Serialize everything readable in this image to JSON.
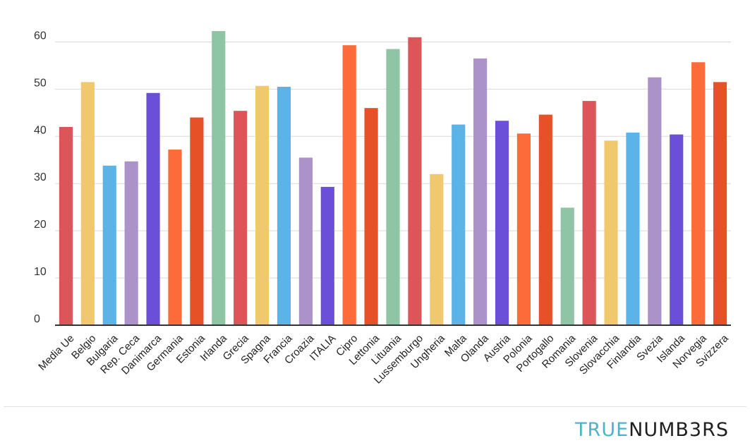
{
  "chart_data": {
    "type": "bar",
    "categories": [
      "Media Ue",
      "Belgio",
      "Bulgaria",
      "Rep. Ceca",
      "Danimarca",
      "Germania",
      "Estonia",
      "Irlanda",
      "Grecia",
      "Spagna",
      "Francia",
      "Croazia",
      "ITALIA",
      "Cipro",
      "Lettonia",
      "Lituania",
      "Lussemburgo",
      "Ungheria",
      "Malta",
      "Olanda",
      "Austria",
      "Polonia",
      "Portogallo",
      "Romania",
      "Slovenia",
      "Slovacchia",
      "Finlandia",
      "Svezia",
      "Islanda",
      "Norvegia",
      "Svizzera"
    ],
    "values": [
      42,
      51.5,
      33.8,
      34.7,
      49.2,
      37.2,
      44,
      62.3,
      45.4,
      50.7,
      50.5,
      35.5,
      29.3,
      59.3,
      46,
      58.5,
      61,
      32,
      42.5,
      56.5,
      43.3,
      40.6,
      44.6,
      24.9,
      47.5,
      39.1,
      40.8,
      52.5,
      40.4,
      55.7,
      51.5
    ],
    "colors": [
      "#dc5558",
      "#f0c96e",
      "#5bb3e6",
      "#ab92c9",
      "#6c4fd9",
      "#fc6b3a",
      "#e65127",
      "#8fc4a5",
      "#dc5558",
      "#f0c96e",
      "#5bb3e6",
      "#ab92c9",
      "#6c4fd9",
      "#fc6b3a",
      "#e65127",
      "#8fc4a5",
      "#dc5558",
      "#f0c96e",
      "#5bb3e6",
      "#ab92c9",
      "#6c4fd9",
      "#fc6b3a",
      "#e65127",
      "#8fc4a5",
      "#dc5558",
      "#f0c96e",
      "#5bb3e6",
      "#ab92c9",
      "#6c4fd9",
      "#fc6b3a",
      "#e65127"
    ],
    "yticks": [
      0,
      10,
      20,
      30,
      40,
      50,
      60
    ],
    "ylim": [
      0,
      65
    ],
    "grid": true,
    "title": "",
    "xlabel": "",
    "ylabel": ""
  },
  "branding": {
    "logo_part_a": "TRUE",
    "logo_part_b": "NUMB3RS"
  }
}
